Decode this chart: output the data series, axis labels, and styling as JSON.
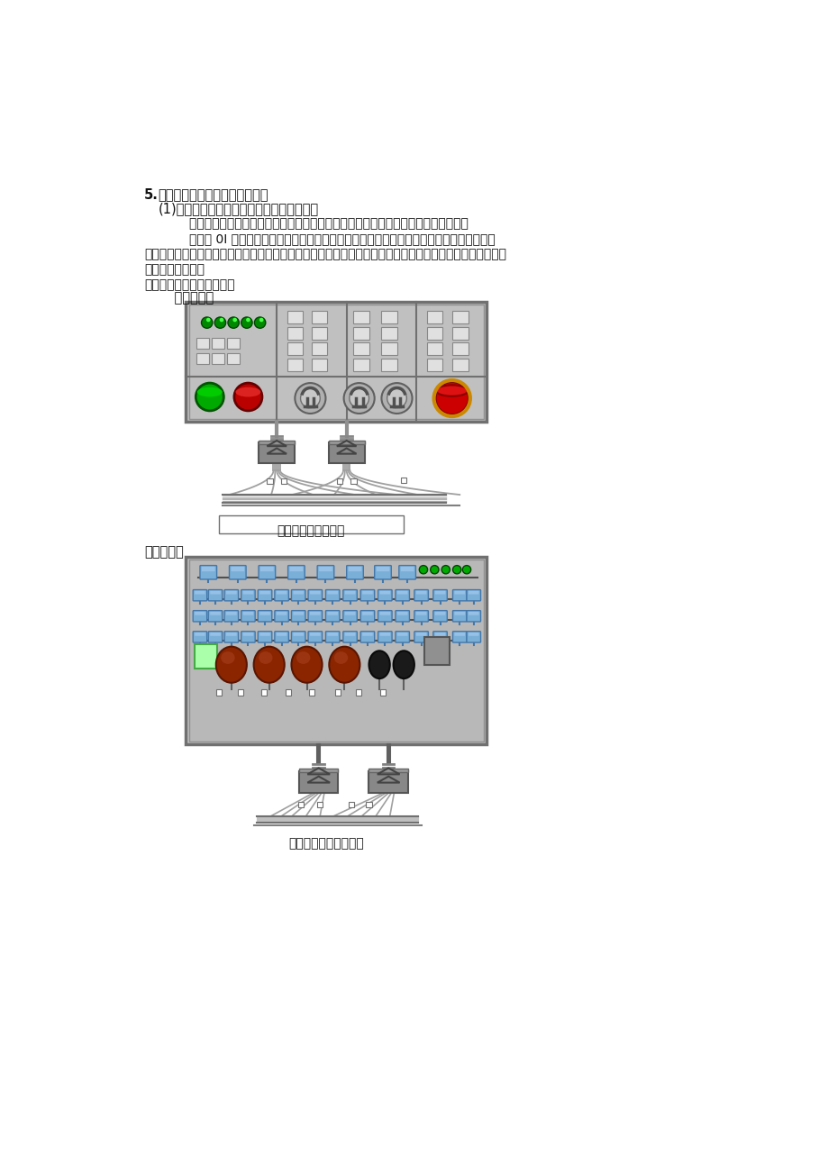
{
  "bg_color": "#ffffff",
  "title_num": "5.",
  "title": "机床操作面板的设计方法及说明",
  "subtitle": "(1)机床侧通用机床操作面板的一般设计方法",
  "para1": "        在机床设计中，机床厂家可以根据根据机床的实际需要进展不同的选择和设计，其一",
  "para2": "        是通过 0I 系统的标准输入输出接口进展设计，此方法因为全部使用的是输入输出的点进展",
  "para3": "的连接，连接的接点较多，工作量较大，消费的效率较低，不利于大批量的消费。但是，制造的本钱较低，机",
  "para4": "床的个性化较强。",
  "para5": "实现的方法简要示意如下：",
  "label_front": "    面板前视图",
  "label_front_caption": "机床操作面板前视图",
  "label_rear": "面板后视图",
  "label_rear_caption": "机床操作面板后走线图",
  "panel_bg": "#c0c0c0",
  "panel_bg2": "#b8b8b8",
  "panel_border": "#707070",
  "btn_face": "#e0e0e0",
  "btn_border": "#888888",
  "green_led": "#00cc00",
  "red_btn": "#cc0000",
  "orange_btn": "#cc5500",
  "connector_color": "#808080",
  "wire_color": "#a8a8a8",
  "blue_conn": "#7ab0d8",
  "blue_conn_dark": "#4477aa",
  "dark_brown": "#7a2800",
  "black_btn": "#282828"
}
